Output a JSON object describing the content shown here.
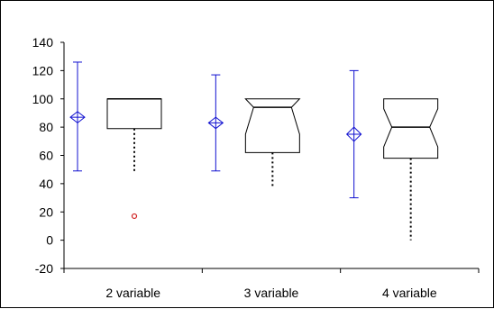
{
  "chart_data": {
    "type": "box",
    "categories": [
      "2 variable",
      "3 variable",
      "4 variable"
    ],
    "ylim": [
      -20,
      140
    ],
    "yticks": [
      -20,
      0,
      20,
      40,
      60,
      80,
      100,
      120,
      140
    ],
    "grid": false,
    "legend": "none",
    "boxes": [
      {
        "category": "2 variable",
        "q1": 79,
        "median": 100,
        "q3": 100,
        "whisker_low": 49,
        "whisker_high": 100,
        "notch_low": 100,
        "notch_high": 100,
        "outliers": [
          17
        ]
      },
      {
        "category": "3 variable",
        "q1": 62,
        "median": 94,
        "q3": 100,
        "whisker_low": 38,
        "whisker_high": 100,
        "notch_low": 75,
        "notch_high": 100,
        "outliers": []
      },
      {
        "category": "4 variable",
        "q1": 58,
        "median": 80,
        "q3": 100,
        "whisker_low": 0,
        "whisker_high": 100,
        "notch_low": 66,
        "notch_high": 93,
        "outliers": []
      }
    ],
    "mean_diamonds": [
      {
        "category": "2 variable",
        "mean": 87,
        "ci_low": 83,
        "ci_high": 91,
        "low": 49,
        "high": 126
      },
      {
        "category": "3 variable",
        "mean": 83,
        "ci_low": 79,
        "ci_high": 87,
        "low": 49,
        "high": 117
      },
      {
        "category": "4 variable",
        "mean": 75,
        "ci_low": 70,
        "ci_high": 80,
        "low": 30,
        "high": 120
      }
    ],
    "colors": {
      "diamond": "#1010d0",
      "box": "#000000",
      "outlier": "#d02020",
      "axis": "#000000"
    }
  }
}
